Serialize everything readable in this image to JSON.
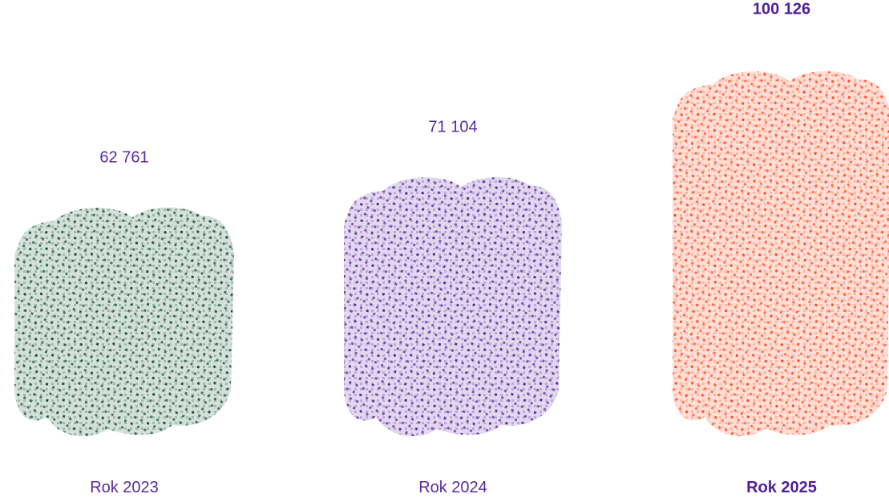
{
  "chart_data": {
    "type": "bar",
    "categories": [
      "Rok 2023",
      "Rok 2024",
      "Rok 2025"
    ],
    "values": [
      62761,
      71104,
      100126
    ],
    "value_labels": [
      "62 761",
      "71 104",
      "100 126"
    ],
    "highlight_index": 2,
    "colors": [
      "#15543a",
      "#5c27a2",
      "#ff4a1c"
    ],
    "label_color": "#5b2aa0",
    "highlight_label_color": "#4f1f98"
  }
}
